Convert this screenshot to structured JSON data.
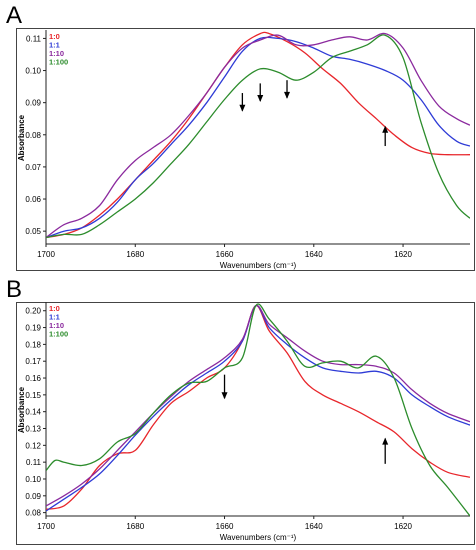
{
  "chart_data": [
    {
      "panel_label": "A",
      "type": "line",
      "xlabel": "Wavenumbers (cm⁻¹)",
      "ylabel": "Absorbance",
      "xlim": [
        1700,
        1605
      ],
      "ylim": [
        0.046,
        0.112
      ],
      "x_reversed": true,
      "x_ticks": [
        "1700",
        "1680",
        "1660",
        "1640",
        "1620"
      ],
      "x_tick_values": [
        1700,
        1680,
        1660,
        1640,
        1620
      ],
      "y_ticks": [
        "0.05",
        "0.06",
        "0.07",
        "0.08",
        "0.09",
        "0.10",
        "0.11"
      ],
      "y_tick_values": [
        0.05,
        0.06,
        0.07,
        0.08,
        0.09,
        0.1,
        0.11
      ],
      "grid": false,
      "legend_position": "top-left",
      "series": [
        {
          "name": "1:0",
          "color": "#e8262b",
          "x": [
            1700,
            1696,
            1692,
            1688,
            1684,
            1680,
            1676,
            1672,
            1668,
            1664,
            1660,
            1656,
            1652,
            1650,
            1646,
            1642,
            1638,
            1634,
            1630,
            1626,
            1622,
            1618,
            1614,
            1610,
            1605
          ],
          "y": [
            0.048,
            0.049,
            0.051,
            0.055,
            0.06,
            0.066,
            0.072,
            0.078,
            0.085,
            0.093,
            0.101,
            0.108,
            0.1115,
            0.1115,
            0.109,
            0.1055,
            0.1005,
            0.096,
            0.09,
            0.085,
            0.08,
            0.076,
            0.0742,
            0.0738,
            0.0738
          ]
        },
        {
          "name": "1:1",
          "color": "#2e3bd6",
          "x": [
            1700,
            1696,
            1692,
            1688,
            1684,
            1680,
            1676,
            1672,
            1668,
            1664,
            1660,
            1656,
            1652,
            1648,
            1644,
            1640,
            1636,
            1632,
            1628,
            1624,
            1620,
            1616,
            1612,
            1608,
            1605
          ],
          "y": [
            0.048,
            0.05,
            0.051,
            0.054,
            0.059,
            0.066,
            0.071,
            0.077,
            0.083,
            0.09,
            0.098,
            0.106,
            0.11,
            0.11,
            0.109,
            0.107,
            0.1045,
            0.1035,
            0.102,
            0.1,
            0.097,
            0.091,
            0.083,
            0.078,
            0.0765
          ]
        },
        {
          "name": "1:10",
          "color": "#8b2a9e",
          "x": [
            1700,
            1696,
            1692,
            1688,
            1684,
            1680,
            1676,
            1672,
            1668,
            1664,
            1660,
            1656,
            1652,
            1648,
            1644,
            1640,
            1636,
            1632,
            1628,
            1624,
            1620,
            1616,
            1612,
            1608,
            1605
          ],
          "y": [
            0.048,
            0.052,
            0.054,
            0.058,
            0.066,
            0.072,
            0.076,
            0.08,
            0.086,
            0.093,
            0.101,
            0.107,
            0.1095,
            0.111,
            0.108,
            0.108,
            0.1095,
            0.1105,
            0.1095,
            0.1115,
            0.107,
            0.097,
            0.089,
            0.085,
            0.083
          ]
        },
        {
          "name": "1:100",
          "color": "#2c8c2c",
          "x": [
            1700,
            1696,
            1692,
            1688,
            1684,
            1680,
            1676,
            1672,
            1668,
            1664,
            1660,
            1656,
            1652,
            1648,
            1644,
            1640,
            1636,
            1632,
            1628,
            1624,
            1620,
            1616,
            1612,
            1608,
            1605
          ],
          "y": [
            0.048,
            0.049,
            0.049,
            0.052,
            0.056,
            0.06,
            0.065,
            0.071,
            0.077,
            0.084,
            0.091,
            0.097,
            0.1005,
            0.0995,
            0.097,
            0.0995,
            0.104,
            0.106,
            0.108,
            0.111,
            0.104,
            0.084,
            0.068,
            0.058,
            0.054
          ]
        }
      ],
      "annotations": [
        {
          "type": "arrow-down",
          "x": 1656,
          "y_from": 0.093,
          "y_to": 0.0875
        },
        {
          "type": "arrow-down",
          "x": 1652,
          "y_from": 0.096,
          "y_to": 0.0905
        },
        {
          "type": "arrow-down",
          "x": 1646,
          "y_from": 0.097,
          "y_to": 0.0915
        },
        {
          "type": "arrow-up",
          "x": 1624,
          "y_from": 0.0765,
          "y_to": 0.0825
        }
      ]
    },
    {
      "panel_label": "B",
      "type": "line",
      "xlabel": "Wavenumbers (cm⁻¹)",
      "ylabel": "Absorbance",
      "xlim": [
        1700,
        1605
      ],
      "ylim": [
        0.078,
        0.204
      ],
      "x_reversed": true,
      "x_ticks": [
        "1700",
        "1680",
        "1660",
        "1640",
        "1620"
      ],
      "x_tick_values": [
        1700,
        1680,
        1660,
        1640,
        1620
      ],
      "y_ticks": [
        "0.08",
        "0.09",
        "0.10",
        "0.11",
        "0.12",
        "0.13",
        "0.14",
        "0.15",
        "0.16",
        "0.17",
        "0.18",
        "0.19",
        "0.20"
      ],
      "y_tick_values": [
        0.08,
        0.09,
        0.1,
        0.11,
        0.12,
        0.13,
        0.14,
        0.15,
        0.16,
        0.17,
        0.18,
        0.19,
        0.2
      ],
      "grid": false,
      "legend_position": "top-left",
      "series": [
        {
          "name": "1:0",
          "color": "#e8262b",
          "x": [
            1700,
            1696,
            1692,
            1688,
            1684,
            1680,
            1676,
            1672,
            1668,
            1664,
            1660,
            1656,
            1653,
            1650,
            1646,
            1642,
            1638,
            1634,
            1630,
            1626,
            1622,
            1618,
            1614,
            1610,
            1605
          ],
          "y": [
            0.082,
            0.084,
            0.094,
            0.108,
            0.115,
            0.117,
            0.132,
            0.145,
            0.152,
            0.16,
            0.166,
            0.182,
            0.203,
            0.188,
            0.175,
            0.158,
            0.15,
            0.145,
            0.14,
            0.134,
            0.128,
            0.118,
            0.11,
            0.104,
            0.101
          ]
        },
        {
          "name": "1:1",
          "color": "#2e3bd6",
          "x": [
            1700,
            1696,
            1692,
            1688,
            1684,
            1680,
            1676,
            1672,
            1668,
            1664,
            1660,
            1656,
            1653,
            1650,
            1646,
            1642,
            1638,
            1634,
            1630,
            1626,
            1622,
            1618,
            1614,
            1610,
            1605
          ],
          "y": [
            0.081,
            0.088,
            0.095,
            0.103,
            0.114,
            0.126,
            0.137,
            0.147,
            0.156,
            0.163,
            0.17,
            0.182,
            0.203,
            0.19,
            0.18,
            0.172,
            0.166,
            0.164,
            0.163,
            0.164,
            0.16,
            0.15,
            0.143,
            0.137,
            0.132
          ]
        },
        {
          "name": "1:10",
          "color": "#8b2a9e",
          "x": [
            1700,
            1696,
            1692,
            1688,
            1684,
            1680,
            1676,
            1672,
            1668,
            1664,
            1660,
            1656,
            1653,
            1650,
            1646,
            1642,
            1638,
            1634,
            1630,
            1626,
            1622,
            1618,
            1614,
            1610,
            1605
          ],
          "y": [
            0.084,
            0.09,
            0.097,
            0.106,
            0.117,
            0.128,
            0.139,
            0.149,
            0.158,
            0.165,
            0.172,
            0.183,
            0.203,
            0.192,
            0.184,
            0.176,
            0.17,
            0.168,
            0.168,
            0.167,
            0.163,
            0.153,
            0.145,
            0.139,
            0.134
          ]
        },
        {
          "name": "1:100",
          "color": "#2c8c2c",
          "x": [
            1700,
            1698,
            1696,
            1692,
            1688,
            1684,
            1680,
            1676,
            1672,
            1668,
            1664,
            1660,
            1656,
            1653,
            1650,
            1646,
            1642,
            1638,
            1634,
            1630,
            1626,
            1622,
            1618,
            1614,
            1610,
            1605
          ],
          "y": [
            0.105,
            0.111,
            0.11,
            0.108,
            0.112,
            0.122,
            0.127,
            0.139,
            0.15,
            0.157,
            0.158,
            0.166,
            0.172,
            0.203,
            0.195,
            0.182,
            0.167,
            0.169,
            0.17,
            0.166,
            0.173,
            0.16,
            0.13,
            0.108,
            0.095,
            0.078
          ]
        }
      ],
      "annotations": [
        {
          "type": "arrow-down",
          "x": 1660,
          "y_from": 0.162,
          "y_to": 0.148
        },
        {
          "type": "arrow-up",
          "x": 1624,
          "y_from": 0.109,
          "y_to": 0.124
        }
      ]
    }
  ]
}
